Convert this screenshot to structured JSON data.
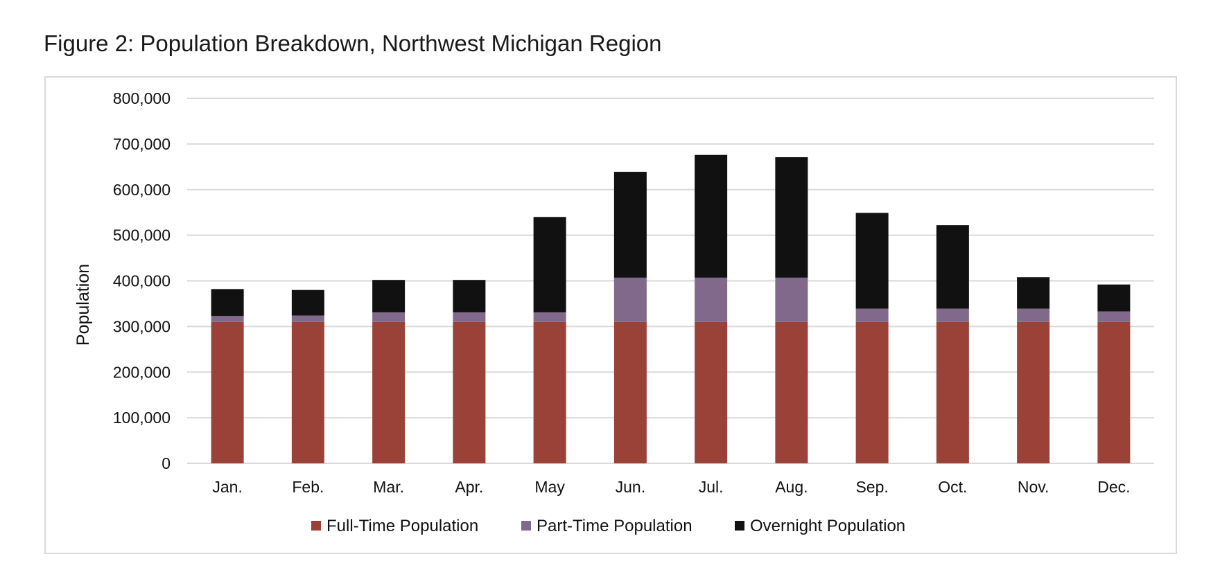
{
  "title": "Figure 2: Population Breakdown, Northwest Michigan Region",
  "chart_data": {
    "type": "bar",
    "stacked": true,
    "title": "Figure 2: Population Breakdown, Northwest Michigan Region",
    "xlabel": "",
    "ylabel": "Population",
    "ylim": [
      0,
      800000
    ],
    "yticks": [
      "0",
      "100,000",
      "200,000",
      "300,000",
      "400,000",
      "500,000",
      "600,000",
      "700,000",
      "800,000"
    ],
    "ytick_values": [
      0,
      100000,
      200000,
      300000,
      400000,
      500000,
      600000,
      700000,
      800000
    ],
    "grid": true,
    "legend_position": "bottom",
    "categories": [
      "Jan.",
      "Feb.",
      "Mar.",
      "Apr.",
      "May",
      "Jun.",
      "Jul.",
      "Aug.",
      "Sep.",
      "Oct.",
      "Nov.",
      "Dec."
    ],
    "series": [
      {
        "name": "Full-Time Population",
        "color": "#9b4238",
        "values": [
          310000,
          310000,
          310000,
          310000,
          310000,
          310000,
          310000,
          310000,
          310000,
          310000,
          310000,
          310000
        ]
      },
      {
        "name": "Part-Time Population",
        "color": "#80698a",
        "values": [
          13000,
          14000,
          21000,
          21000,
          21000,
          97000,
          97000,
          97000,
          29000,
          29000,
          29000,
          23000
        ]
      },
      {
        "name": "Overnight Population",
        "color": "#111111",
        "values": [
          59000,
          56000,
          71000,
          71000,
          209000,
          232000,
          269000,
          264000,
          210000,
          183000,
          69000,
          59000
        ]
      }
    ]
  }
}
